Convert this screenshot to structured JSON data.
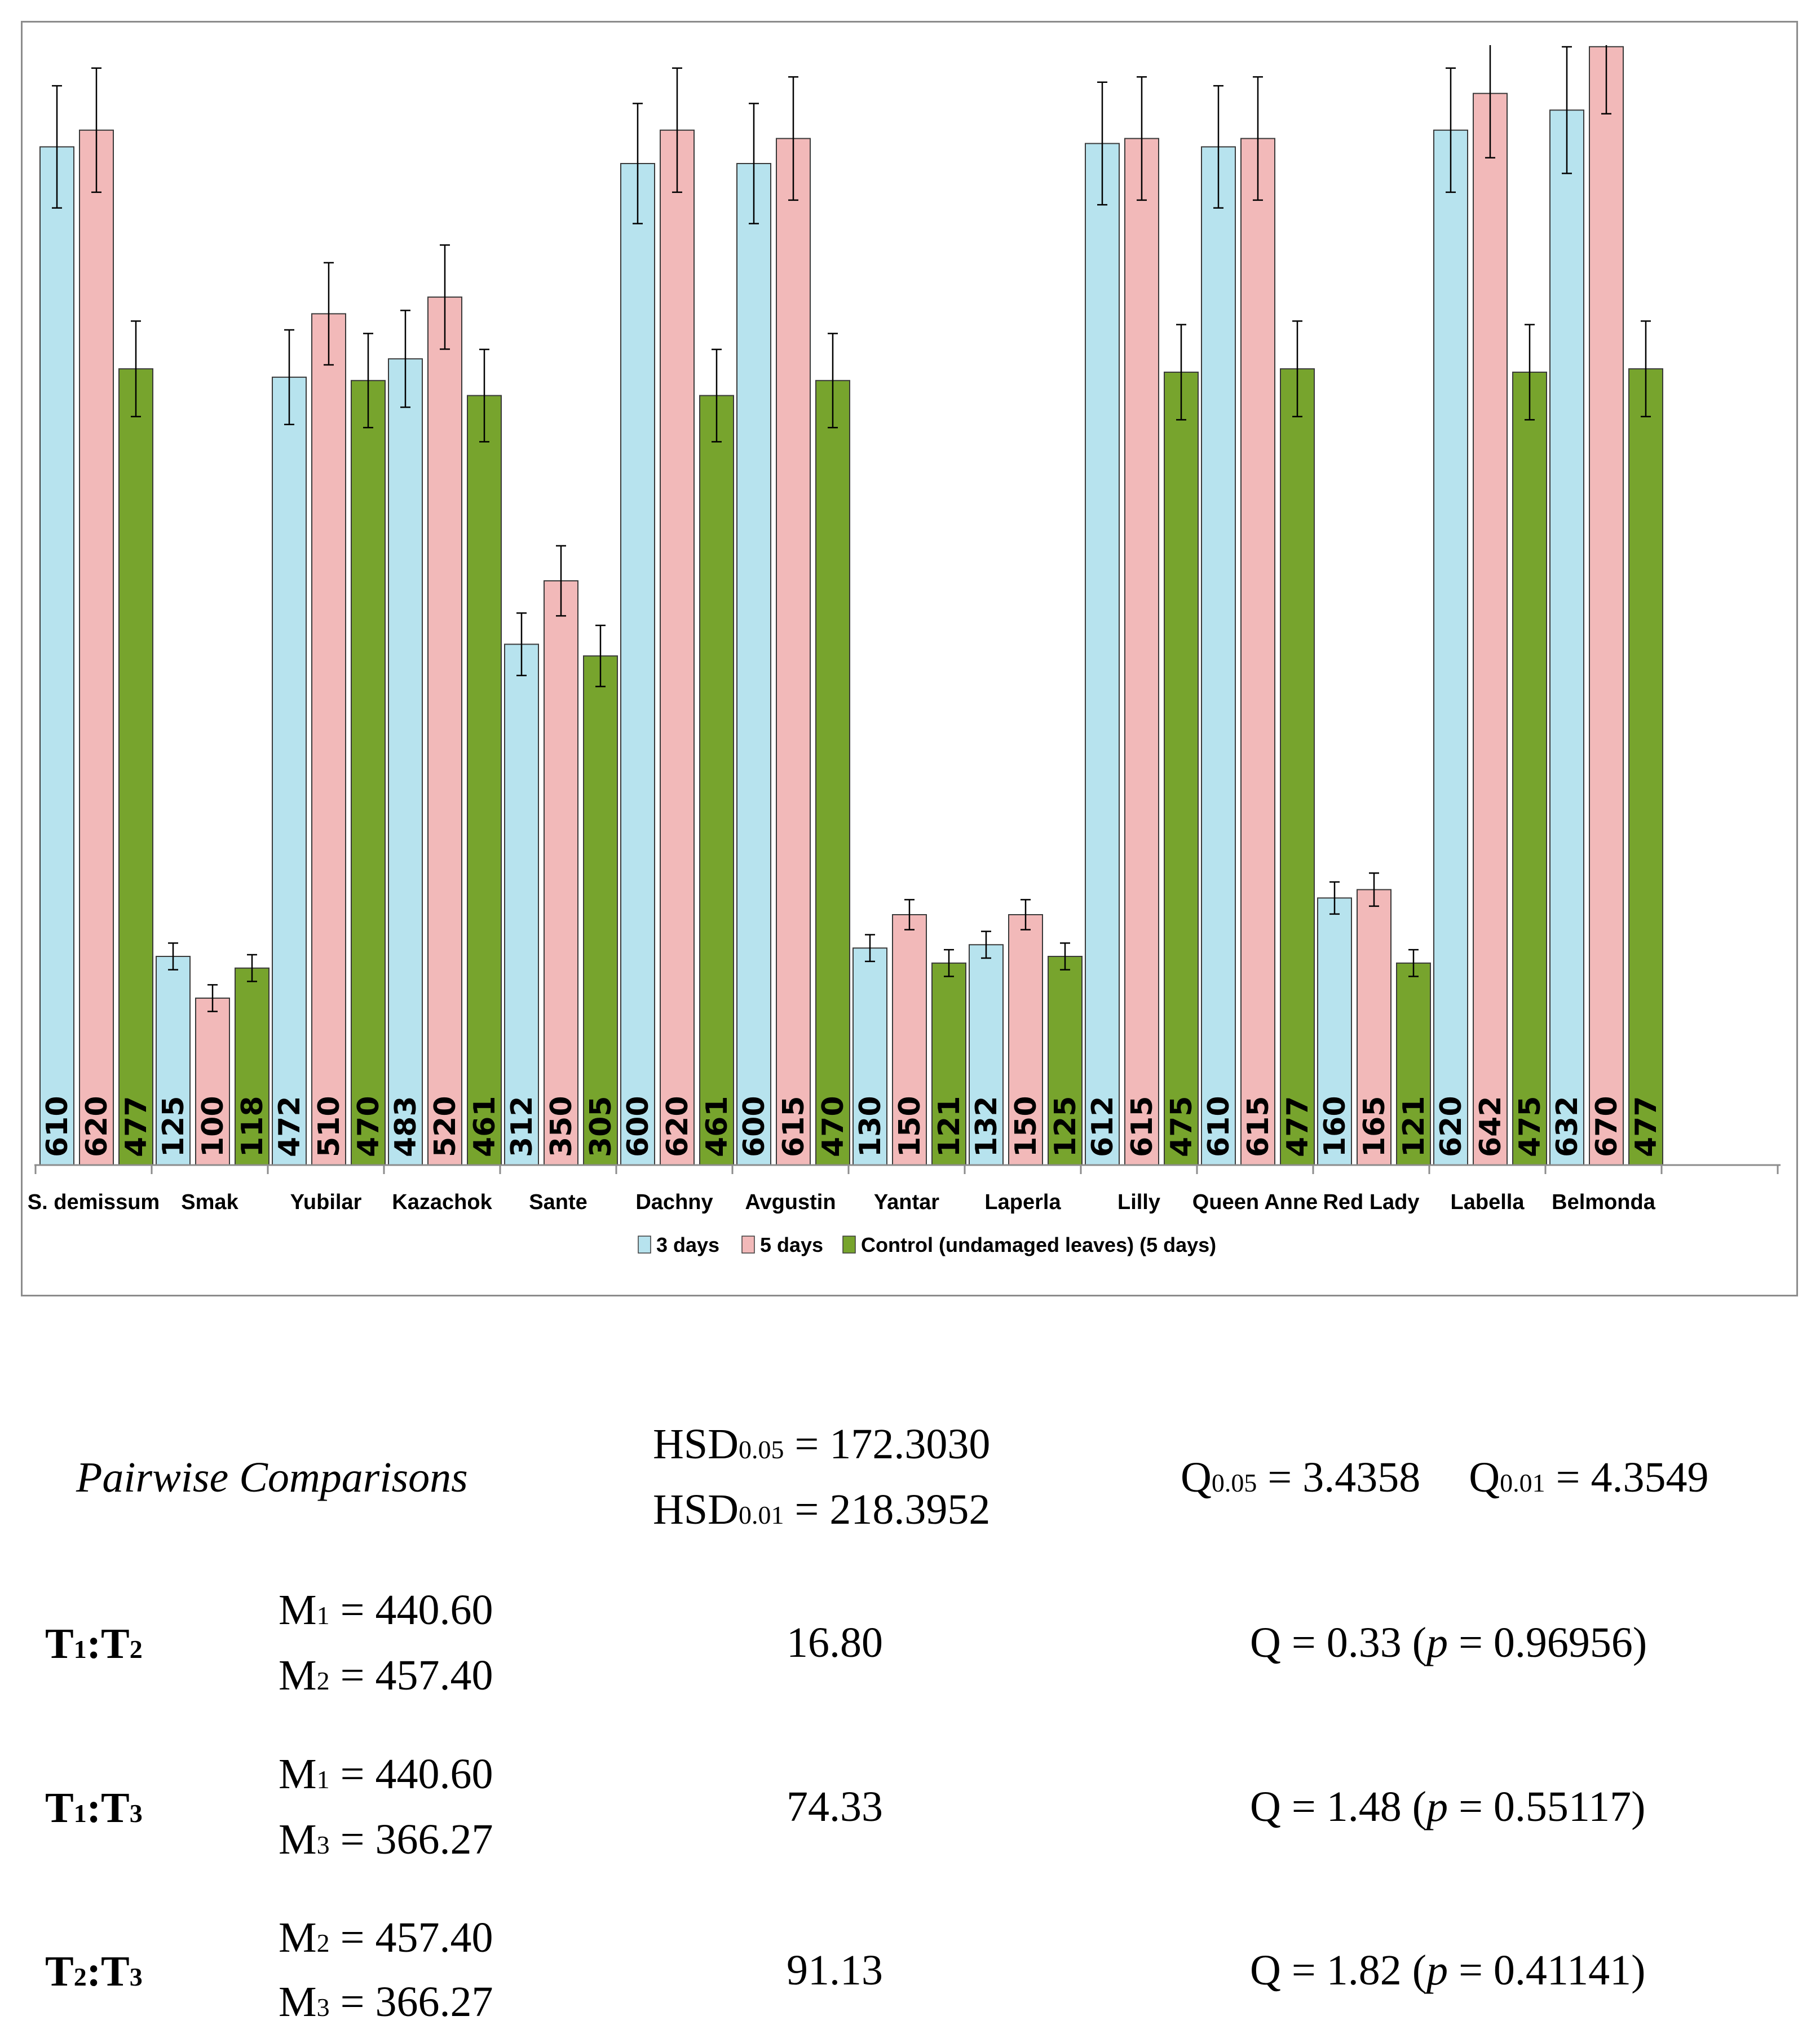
{
  "chart_data": {
    "type": "bar",
    "categories": [
      "S. demissum",
      "Smak",
      "Yubilar",
      "Kazachok",
      "Sante",
      "Dachny",
      "Avgustin",
      "Yantar",
      "Laperla",
      "Lilly",
      "Queen Anne",
      "Red Lady",
      "Labella",
      "Belmonda"
    ],
    "series": [
      {
        "name": "3 days",
        "color": "#b7e3ee",
        "values": [
          610,
          125,
          472,
          483,
          312,
          600,
          600,
          130,
          132,
          612,
          610,
          160,
          620,
          632
        ]
      },
      {
        "name": "5 days",
        "color": "#f2b9b9",
        "values": [
          620,
          100,
          510,
          520,
          350,
          620,
          615,
          150,
          150,
          615,
          615,
          165,
          642,
          670
        ]
      },
      {
        "name": "Control (undamaged leaves) (5 days)",
        "color": "#77a42d",
        "values": [
          477,
          118,
          470,
          461,
          305,
          461,
          470,
          121,
          125,
          475,
          477,
          121,
          475,
          477
        ]
      }
    ],
    "legend_position": "bottom",
    "grid": false,
    "error_bars": true,
    "ylim": [
      0,
      650
    ]
  },
  "stats": {
    "title": "Pairwise Comparisons",
    "hsd_005_label": "HSD",
    "hsd_005_sub": "0.05",
    "hsd_005_value": " = 172.3030",
    "hsd_001_label": "HSD",
    "hsd_001_sub": "0.01",
    "hsd_001_value": " = 218.3952",
    "q_005_label": "Q",
    "q_005_sub": "0.05",
    "q_005_value": " = 3.4358",
    "q_001_label": "Q",
    "q_001_sub": "0.01",
    "q_001_value": " = 4.3549",
    "rows": [
      {
        "pair_a": "T",
        "pair_a_sub": "1",
        "sep": ":",
        "pair_b": "T",
        "pair_b_sub": "2",
        "m_top_label": "M",
        "m_top_sub": "1",
        "m_top_value": " = 440.60",
        "m_bot_label": "M",
        "m_bot_sub": "2",
        "m_bot_value": " = 457.40",
        "diff": "16.80",
        "q_text": "Q = 0.33 (",
        "p_label": "p",
        "p_text": " = 0.96956)"
      },
      {
        "pair_a": "T",
        "pair_a_sub": "1",
        "sep": ":",
        "pair_b": "T",
        "pair_b_sub": "3",
        "m_top_label": "M",
        "m_top_sub": "1",
        "m_top_value": " = 440.60",
        "m_bot_label": "M",
        "m_bot_sub": "3",
        "m_bot_value": " = 366.27",
        "diff": "74.33",
        "q_text": "Q = 1.48 (",
        "p_label": "p",
        "p_text": " = 0.55117)"
      },
      {
        "pair_a": "T",
        "pair_a_sub": "2",
        "sep": ":",
        "pair_b": "T",
        "pair_b_sub": "3",
        "m_top_label": "M",
        "m_top_sub": "2",
        "m_top_value": " = 457.40",
        "m_bot_label": "M",
        "m_bot_sub": "3",
        "m_bot_value": " = 366.27",
        "diff": "91.13",
        "q_text": "Q = 1.82 (",
        "p_label": "p",
        "p_text": " = 0.41141)"
      }
    ]
  }
}
